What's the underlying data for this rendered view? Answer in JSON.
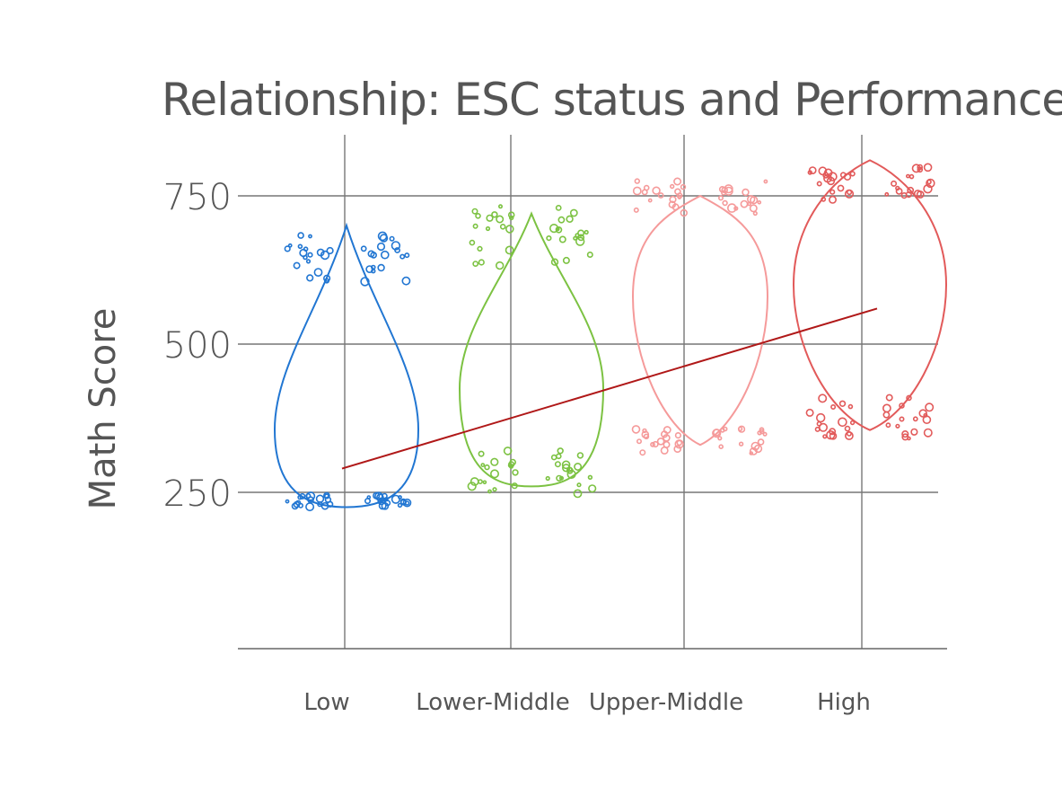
{
  "chart_data": {
    "type": "violin",
    "title": "Relationship: ESC status and Performance",
    "xlabel": "",
    "ylabel": "Math Score",
    "ylim": [
      0,
      850
    ],
    "yticks": [
      250,
      500,
      750
    ],
    "categories": [
      "Low",
      "Lower-Middle",
      "Upper-Middle",
      "High"
    ],
    "colors": [
      "#2176d2",
      "#7cc242",
      "#f59a9a",
      "#e25a5a"
    ],
    "series": [
      {
        "category": "Low",
        "min": 225,
        "max": 700,
        "widest_at": 400,
        "outlier_bands": [
          [
            600,
            690
          ],
          [
            225,
            245
          ]
        ]
      },
      {
        "category": "Lower-Middle",
        "min": 260,
        "max": 720,
        "widest_at": 480,
        "outlier_bands": [
          [
            630,
            735
          ],
          [
            245,
            320
          ]
        ]
      },
      {
        "category": "Upper-Middle",
        "min": 330,
        "max": 750,
        "widest_at": 580,
        "outlier_bands": [
          [
            720,
            775
          ],
          [
            315,
            360
          ]
        ]
      },
      {
        "category": "High",
        "min": 355,
        "max": 810,
        "widest_at": 600,
        "outlier_bands": [
          [
            740,
            800
          ],
          [
            340,
            410
          ]
        ]
      }
    ],
    "trend_line": {
      "from": [
        "Low",
        290
      ],
      "to": [
        "High",
        560
      ]
    },
    "grid": true,
    "legend": "none"
  }
}
